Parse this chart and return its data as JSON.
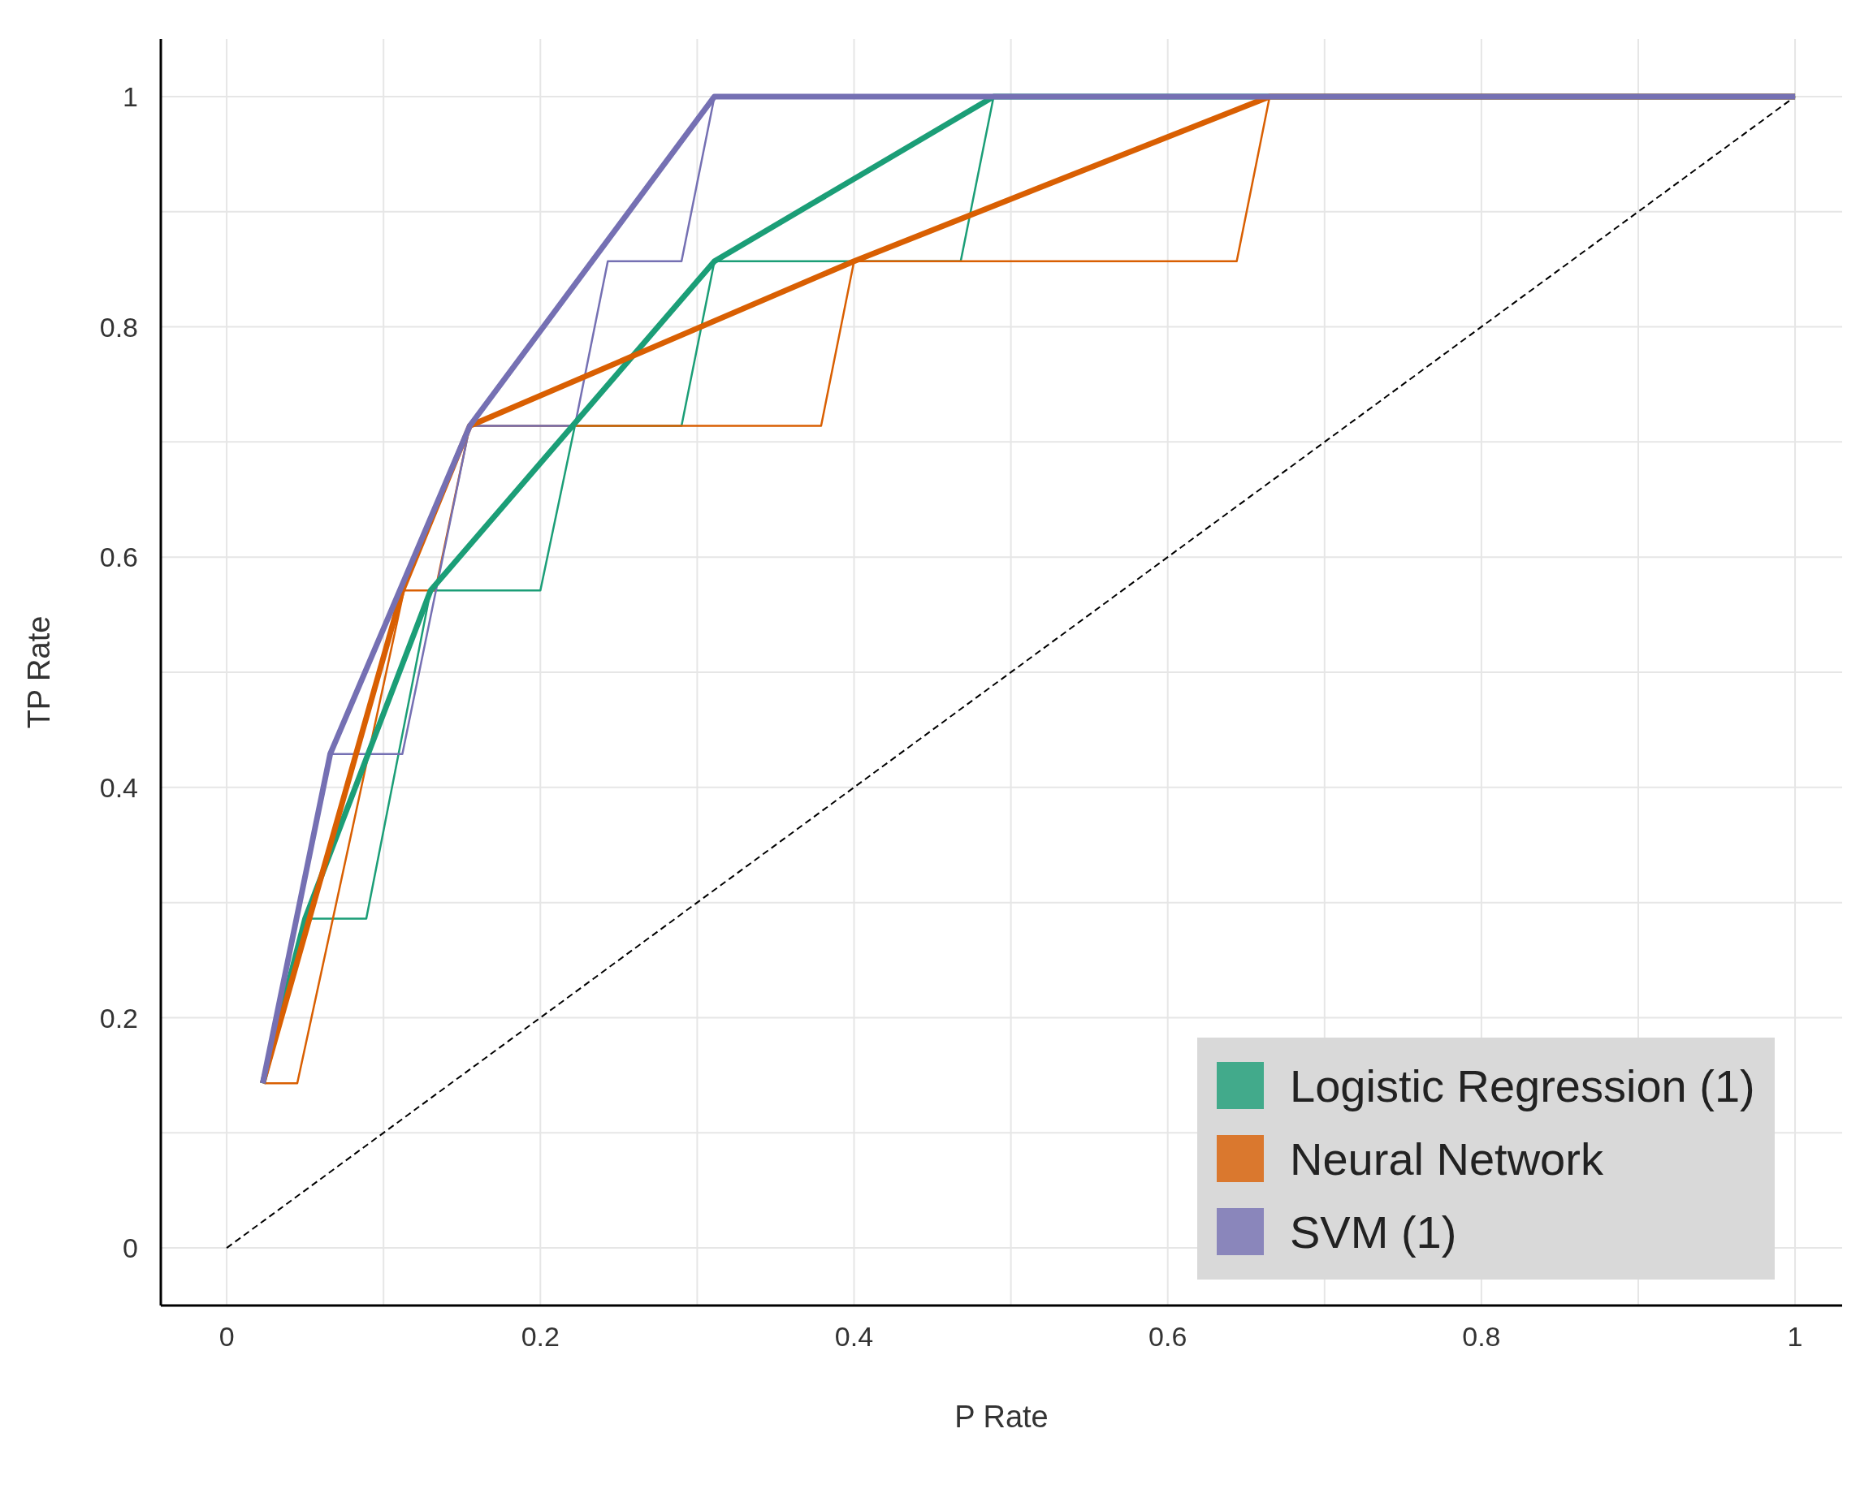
{
  "chart_data": {
    "type": "line",
    "xlabel": "P Rate",
    "ylabel": "TP Rate",
    "xlim": [
      -0.042,
      1.03
    ],
    "ylim": [
      -0.05,
      1.05
    ],
    "xticks": [
      0,
      {
        "value": 0.1,
        "label": null
      },
      0.2,
      {
        "value": 0.3,
        "label": null
      },
      0.4,
      {
        "value": 0.5,
        "label": null
      },
      0.6,
      {
        "value": 0.7,
        "label": null
      },
      0.8,
      {
        "value": 0.9,
        "label": null
      },
      1
    ],
    "yticks": [
      0,
      {
        "value": 0.1,
        "label": null
      },
      0.2,
      {
        "value": 0.3,
        "label": null
      },
      0.4,
      {
        "value": 0.5,
        "label": null
      },
      0.6,
      {
        "value": 0.7,
        "label": null
      },
      0.8,
      {
        "value": 0.9,
        "label": null
      },
      1
    ],
    "grid": true,
    "legend": "bottom right",
    "marker": "none",
    "series": [
      {
        "color": "#000000",
        "line_style": "dashed",
        "x": [
          0,
          1
        ],
        "values": [
          0,
          1
        ]
      },
      {
        "color": "#1b9e77",
        "x": [
          0.024,
          0.05,
          0.089,
          0.13,
          0.2,
          0.222,
          0.29,
          0.311,
          0.468,
          0.489,
          1
        ],
        "values": [
          0.143,
          0.286,
          0.286,
          0.571,
          0.571,
          0.714,
          0.714,
          0.857,
          0.857,
          1,
          1
        ]
      },
      {
        "color": "#d95f02",
        "x": [
          0.024,
          0.045,
          0.113,
          0.133,
          0.155,
          0.379,
          0.4,
          0.644,
          0.665,
          1
        ],
        "values": [
          0.143,
          0.143,
          0.571,
          0.571,
          0.714,
          0.714,
          0.857,
          0.857,
          1,
          1
        ]
      },
      {
        "color": "#7570b3",
        "x": [
          0.024,
          0.066,
          0.112,
          0.155,
          0.222,
          0.243,
          0.29,
          0.311,
          1
        ],
        "values": [
          0.143,
          0.429,
          0.429,
          0.714,
          0.714,
          0.857,
          0.857,
          1,
          1
        ]
      },
      {
        "name": "Logistic Regression (1)",
        "color": "#1b9e77",
        "x": [
          0.023,
          0.05,
          0.13,
          0.311,
          0.489,
          1
        ],
        "values": [
          0.143,
          0.286,
          0.571,
          0.857,
          1,
          1
        ]
      },
      {
        "name": "Neural Network",
        "color": "#d95f02",
        "x": [
          0.023,
          0.112,
          0.155,
          0.4,
          0.665,
          1
        ],
        "values": [
          0.143,
          0.571,
          0.714,
          0.857,
          1,
          1
        ]
      },
      {
        "name": "SVM (1)",
        "color": "#7570b3",
        "x": [
          0.023,
          0.066,
          0.155,
          0.311,
          1
        ],
        "values": [
          0.143,
          0.429,
          0.714,
          1,
          1
        ]
      }
    ]
  }
}
